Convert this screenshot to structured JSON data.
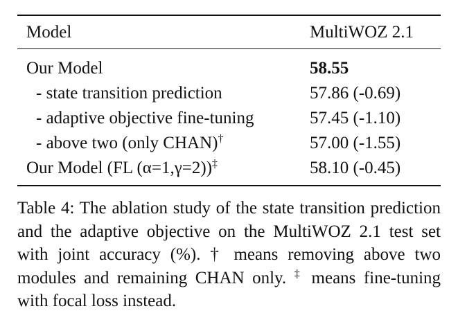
{
  "table": {
    "header": [
      "Model",
      "MultiWOZ 2.1"
    ],
    "rows": [
      {
        "model": "Our Model",
        "score": "58.55"
      },
      {
        "model": "- state transition prediction",
        "score": "57.86 (-0.69)"
      },
      {
        "model": "- adaptive objective fine-tuning",
        "score": "57.45 (-1.10)"
      },
      {
        "model": "- above two (only CHAN)",
        "mark": "†",
        "score": "57.00 (-1.55)"
      },
      {
        "model": "Our Model (FL (α=1,γ=2))",
        "mark": "‡",
        "score": "58.10 (-0.45)"
      }
    ]
  },
  "caption": {
    "label": "Table 4:",
    "text": "The ablation study of the state transition prediction and the adaptive objective on the MultiWOZ 2.1 test set with joint accuracy (%). † means removing above two modules and remaining CHAN only.",
    "mark": "‡",
    "text2": "means fine-tuning with focal loss instead."
  }
}
